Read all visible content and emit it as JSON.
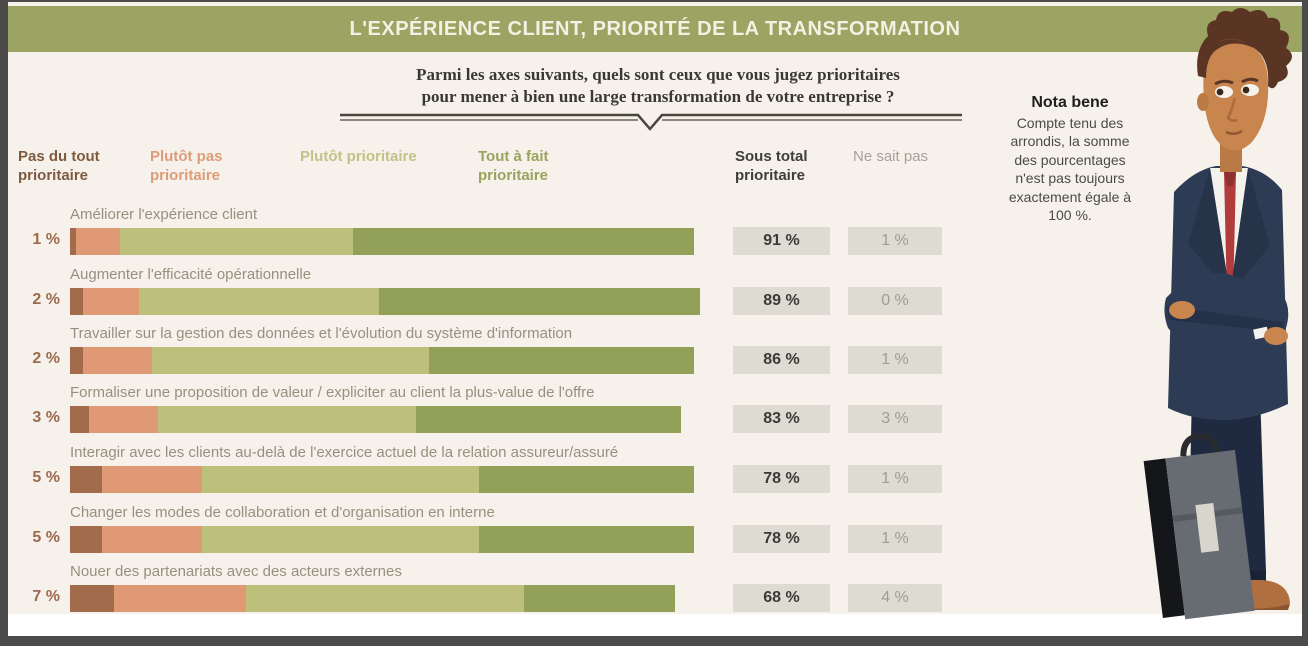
{
  "title": "L'EXPÉRIENCE CLIENT, PRIORITÉ DE LA TRANSFORMATION",
  "question": {
    "line1": "Parmi les axes suivants, quels sont ceux que vous jugez prioritaires",
    "line2": "pour mener à bien une large transformation de votre entreprise ?"
  },
  "columns": {
    "sous_total": "Sous total prioritaire",
    "ne_sait_pas": "Ne sait pas"
  },
  "legend": [
    {
      "label": "Pas du tout prioritaire",
      "text_color": "#7e5a40"
    },
    {
      "label": "Plutôt pas prioritaire",
      "text_color": "#dd9c79"
    },
    {
      "label": "Plutôt prioritaire",
      "text_color": "#c2c287"
    },
    {
      "label": "Tout à fait prioritaire",
      "text_color": "#9aa35e"
    }
  ],
  "nota_bene": {
    "heading": "Nota bene",
    "body": "Compte tenu des arrondis, la somme des pourcentages n'est pas toujours exactement égale à 100 %."
  },
  "chart_data": {
    "type": "bar",
    "orientation": "horizontal",
    "stacked": true,
    "value_unit": "%",
    "xlim": [
      0,
      100
    ],
    "series_names": [
      "Pas du tout prioritaire",
      "Plutôt pas prioritaire",
      "Plutôt prioritaire",
      "Tout à fait prioritaire"
    ],
    "series_colors": [
      "#a26b4b",
      "#df9a75",
      "#bcc07b",
      "#93a058"
    ],
    "extra_columns": [
      "Sous total prioritaire",
      "Ne sait pas"
    ],
    "rows": [
      {
        "label": "Améliorer l'expérience client",
        "values": [
          1,
          7,
          37,
          54
        ],
        "sous_total": 91,
        "ne_sait_pas": 1
      },
      {
        "label": "Augmenter l'efficacité opérationnelle",
        "values": [
          2,
          9,
          38,
          51
        ],
        "sous_total": 89,
        "ne_sait_pas": 0
      },
      {
        "label": "Travailler sur la gestion des données et l'évolution du système d'information",
        "values": [
          2,
          11,
          44,
          42
        ],
        "sous_total": 86,
        "ne_sait_pas": 1
      },
      {
        "label": "Formaliser une proposition de valeur / expliciter au client la plus-value de l'offre",
        "values": [
          3,
          11,
          41,
          42
        ],
        "sous_total": 83,
        "ne_sait_pas": 3
      },
      {
        "label": "Interagir avec les clients au-delà de l'exercice actuel de la relation assureur/assuré",
        "values": [
          5,
          16,
          44,
          34
        ],
        "sous_total": 78,
        "ne_sait_pas": 1
      },
      {
        "label": "Changer les modes de collaboration et d'organisation en interne",
        "values": [
          5,
          16,
          44,
          34
        ],
        "sous_total": 78,
        "ne_sait_pas": 1
      },
      {
        "label": "Nouer des partenariats avec des acteurs externes",
        "values": [
          7,
          21,
          44,
          24
        ],
        "sous_total": 68,
        "ne_sait_pas": 4
      }
    ]
  },
  "colors": {
    "band": "#9ba463",
    "paper": "#f6f2eb",
    "value_box": "#dedbd2",
    "frame": "#4b4b4b"
  }
}
